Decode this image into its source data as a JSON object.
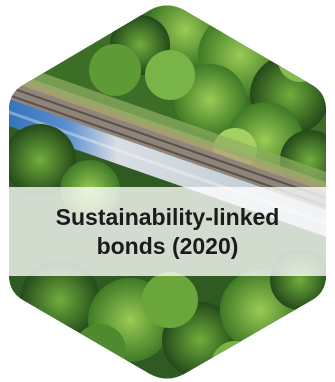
{
  "caption": {
    "line1": "Sustainability-linked",
    "line2": "bonds (2020)"
  },
  "colors": {
    "forest_dark": "#2f5a22",
    "forest_mid": "#4f8a2e",
    "forest_light": "#8cc04c",
    "rail_track": "#9a8f7e",
    "train_blue": "#3f7fc4",
    "train_silver": "#c9d2da",
    "caption_text": "#1b1b1b"
  }
}
